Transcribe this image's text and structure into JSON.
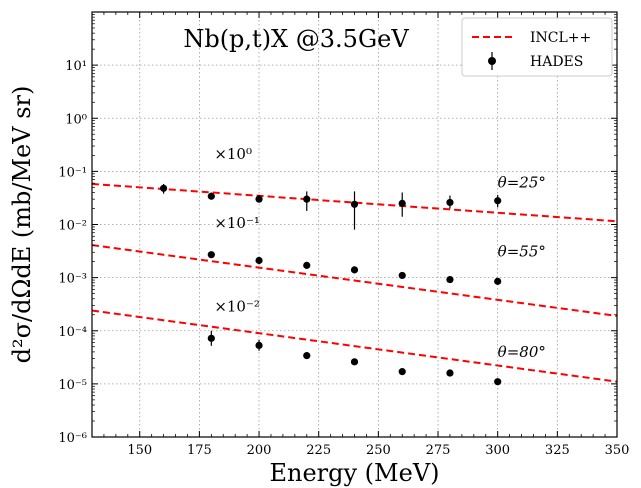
{
  "chart_data": {
    "type": "scatter",
    "title": "Nb(p,t)X @3.5GeV",
    "xlabel": "Energy (MeV)",
    "ylabel": "d²σ/dΩdE (mb/MeV sr)",
    "xlim": [
      130,
      350
    ],
    "ylim": [
      1e-06,
      100.0
    ],
    "yscale": "log",
    "grid": true,
    "legend_position": "top-right",
    "x_ticks": [
      150,
      175,
      200,
      225,
      250,
      275,
      300,
      325,
      350
    ],
    "y_ticks": [
      {
        "value": 1e-06,
        "label": "10⁻⁶"
      },
      {
        "value": 1e-05,
        "label": "10⁻⁵"
      },
      {
        "value": 0.0001,
        "label": "10⁻⁴"
      },
      {
        "value": 0.001,
        "label": "10⁻³"
      },
      {
        "value": 0.01,
        "label": "10⁻²"
      },
      {
        "value": 0.1,
        "label": "10⁻¹"
      },
      {
        "value": 1,
        "label": "10⁰"
      },
      {
        "value": 10,
        "label": "10¹"
      }
    ],
    "legend": [
      {
        "label": "INCL++",
        "style": "dashed-line",
        "color": "#ff0000"
      },
      {
        "label": "HADES",
        "style": "marker-errorbar",
        "color": "#000000"
      }
    ],
    "series": [
      {
        "angle_label": "θ=25°",
        "scale_label": "×10⁰",
        "data_points": [
          {
            "x": 160,
            "y": 0.048,
            "ylo": 0.038,
            "yhi": 0.058
          },
          {
            "x": 180,
            "y": 0.034,
            "ylo": 0.03,
            "yhi": 0.04
          },
          {
            "x": 200,
            "y": 0.03,
            "ylo": 0.026,
            "yhi": 0.036
          },
          {
            "x": 220,
            "y": 0.03,
            "ylo": 0.018,
            "yhi": 0.042
          },
          {
            "x": 240,
            "y": 0.024,
            "ylo": 0.008,
            "yhi": 0.042
          },
          {
            "x": 260,
            "y": 0.025,
            "ylo": 0.014,
            "yhi": 0.04
          },
          {
            "x": 280,
            "y": 0.026,
            "ylo": 0.02,
            "yhi": 0.035
          },
          {
            "x": 300,
            "y": 0.028,
            "ylo": 0.021,
            "yhi": 0.036
          }
        ],
        "model_line": {
          "x": [
            130,
            350
          ],
          "y": [
            0.058,
            0.0115
          ]
        }
      },
      {
        "angle_label": "θ=55°",
        "scale_label": "×10⁻¹",
        "data_points": [
          {
            "x": 180,
            "y": 0.0027,
            "ylo": 0.0025,
            "yhi": 0.0029
          },
          {
            "x": 200,
            "y": 0.0021,
            "ylo": 0.00195,
            "yhi": 0.00225
          },
          {
            "x": 220,
            "y": 0.0017,
            "ylo": 0.00158,
            "yhi": 0.00182
          },
          {
            "x": 240,
            "y": 0.0014,
            "ylo": 0.0013,
            "yhi": 0.0015
          },
          {
            "x": 260,
            "y": 0.0011,
            "ylo": 0.00102,
            "yhi": 0.00118
          },
          {
            "x": 280,
            "y": 0.00092,
            "ylo": 0.00086,
            "yhi": 0.00098
          },
          {
            "x": 300,
            "y": 0.00085,
            "ylo": 0.0008,
            "yhi": 0.0009
          }
        ],
        "model_line": {
          "x": [
            130,
            350
          ],
          "y": [
            0.0041,
            0.00019
          ]
        }
      },
      {
        "angle_label": "θ=80°",
        "scale_label": "×10⁻²",
        "data_points": [
          {
            "x": 180,
            "y": 7.2e-05,
            "ylo": 5.2e-05,
            "yhi": 0.0001
          },
          {
            "x": 200,
            "y": 5.3e-05,
            "ylo": 4.2e-05,
            "yhi": 6.8e-05
          },
          {
            "x": 220,
            "y": 3.4e-05,
            "ylo": 3.1e-05,
            "yhi": 3.7e-05
          },
          {
            "x": 240,
            "y": 2.6e-05,
            "ylo": 2.4e-05,
            "yhi": 2.8e-05
          },
          {
            "x": 260,
            "y": 1.7e-05,
            "ylo": 1.58e-05,
            "yhi": 1.82e-05
          },
          {
            "x": 280,
            "y": 1.6e-05,
            "ylo": 1.49e-05,
            "yhi": 1.71e-05
          },
          {
            "x": 300,
            "y": 1.1e-05,
            "ylo": 1.02e-05,
            "yhi": 1.18e-05
          }
        ],
        "model_line": {
          "x": [
            130,
            350
          ],
          "y": [
            0.00024,
            1.1e-05
          ]
        }
      }
    ]
  }
}
